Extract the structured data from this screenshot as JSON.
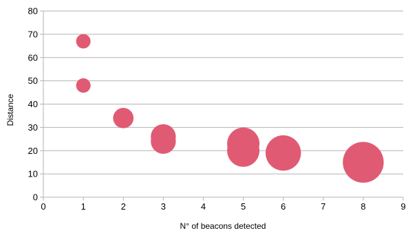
{
  "chart_data": {
    "type": "scatter",
    "variant": "bubble",
    "xlabel": "N° of beacons detected",
    "ylabel": "Distance",
    "xlim": [
      0,
      9
    ],
    "ylim": [
      0,
      80
    ],
    "x_ticks": [
      "0",
      "1",
      "2",
      "3",
      "4",
      "5",
      "6",
      "7",
      "8",
      "9"
    ],
    "y_ticks": [
      "0",
      "10",
      "20",
      "30",
      "40",
      "50",
      "60",
      "70",
      "80"
    ],
    "x_grid": false,
    "y_grid": true,
    "legend": "none",
    "bubble_color": "#e15a73",
    "series": [
      {
        "points": [
          {
            "x": 1,
            "y": 67,
            "size": 1
          },
          {
            "x": 1,
            "y": 48,
            "size": 1
          },
          {
            "x": 2,
            "y": 34,
            "size": 2
          },
          {
            "x": 3,
            "y": 26,
            "size": 3
          },
          {
            "x": 3,
            "y": 24,
            "size": 3
          },
          {
            "x": 5,
            "y": 23,
            "size": 5
          },
          {
            "x": 5,
            "y": 20,
            "size": 5
          },
          {
            "x": 6,
            "y": 19,
            "size": 6
          },
          {
            "x": 8,
            "y": 15,
            "size": 8
          }
        ]
      }
    ]
  }
}
